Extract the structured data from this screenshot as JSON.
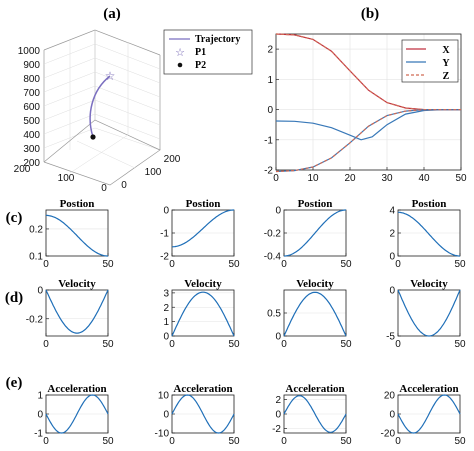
{
  "panel_labels": {
    "a": "(a)",
    "b": "(b)",
    "c": "(c)",
    "d": "(d)",
    "e": "(e)"
  },
  "chart_data": [
    {
      "id": "a",
      "type": "line",
      "subtype": "3d-line",
      "axes": {
        "z_ticks": [
          "1000",
          "900",
          "800",
          "700",
          "600",
          "500",
          "400",
          "300",
          "200"
        ],
        "x_ticks": [
          "200",
          "100",
          "0"
        ],
        "y_ticks": [
          "0",
          "100",
          "200"
        ]
      },
      "legend": {
        "placement": "top-right",
        "entries": [
          "Trajectory",
          "P1",
          "P2"
        ]
      },
      "points": {
        "P1": {
          "marker": "star",
          "color": "#6f5fb0"
        },
        "P2": {
          "marker": "dot",
          "color": "#111111"
        }
      },
      "series": [
        {
          "name": "Trajectory",
          "color": "#7b6fc0"
        }
      ]
    },
    {
      "id": "b",
      "type": "line",
      "xlim": [
        0,
        50
      ],
      "ylim": [
        -2,
        2.5
      ],
      "xticks": [
        0,
        10,
        20,
        30,
        40,
        50
      ],
      "yticks": [
        -2,
        -1,
        0,
        1,
        2
      ],
      "grid": true,
      "legend": {
        "placement": "top-right",
        "entries": [
          "X",
          "Y",
          "Z"
        ]
      },
      "series": [
        {
          "name": "X",
          "color": "#c03040",
          "style": "solid",
          "x": [
            0,
            5,
            10,
            15,
            20,
            25,
            30,
            35,
            40,
            45,
            50
          ],
          "y": [
            2.5,
            2.47,
            2.32,
            1.93,
            1.28,
            0.64,
            0.23,
            0.05,
            0.0,
            0.0,
            0.0
          ]
        },
        {
          "name": "Y",
          "color": "#3878b8",
          "style": "solid",
          "x": [
            0,
            5,
            10,
            15,
            20,
            23,
            26,
            30,
            35,
            40,
            45,
            50
          ],
          "y": [
            -0.38,
            -0.39,
            -0.45,
            -0.6,
            -0.85,
            -1.0,
            -0.9,
            -0.5,
            -0.15,
            -0.03,
            0.0,
            0.0
          ]
        },
        {
          "name": "Z",
          "color": "#d06a55",
          "style": "dashed",
          "x": [
            0,
            5,
            10,
            15,
            20,
            25,
            30,
            35,
            40,
            45,
            50
          ],
          "y": [
            2.5,
            2.47,
            2.32,
            1.93,
            1.28,
            0.64,
            0.23,
            0.05,
            0.0,
            0.0,
            0.0
          ]
        },
        {
          "name": "",
          "color": "#3878b8",
          "style": "solid",
          "x": [
            0,
            5,
            10,
            15,
            20,
            25,
            30,
            35,
            40,
            45,
            50
          ],
          "y": [
            -2.05,
            -2.02,
            -1.9,
            -1.6,
            -1.1,
            -0.55,
            -0.2,
            -0.05,
            0.0,
            0.0,
            0.0
          ]
        },
        {
          "name": "",
          "color": "#d06a55",
          "style": "dashed",
          "x": [
            0,
            5,
            10,
            15,
            20,
            25,
            30,
            35,
            40,
            45,
            50
          ],
          "y": [
            -2.05,
            -2.02,
            -1.9,
            -1.6,
            -1.1,
            -0.55,
            -0.2,
            -0.05,
            0.0,
            0.0,
            0.0
          ]
        }
      ]
    },
    {
      "id": "c1",
      "type": "line",
      "title": "Postion",
      "xlim": [
        0,
        50
      ],
      "ylim": [
        0.1,
        0.27
      ],
      "xticks": [
        0,
        50
      ],
      "yticks": [
        0.1,
        0.2
      ],
      "grid": true,
      "series": [
        {
          "color": "#1f6fb8",
          "shape": "cos_down",
          "from": 0.25,
          "to": 0.1
        }
      ]
    },
    {
      "id": "c2",
      "type": "line",
      "title": "Postion",
      "xlim": [
        0,
        50
      ],
      "ylim": [
        -2,
        0
      ],
      "xticks": [
        0,
        50
      ],
      "yticks": [
        -2,
        -1,
        0
      ],
      "grid": true,
      "series": [
        {
          "color": "#1f6fb8",
          "shape": "cos_up",
          "from": -1.6,
          "to": 0
        }
      ]
    },
    {
      "id": "c3",
      "type": "line",
      "title": "Postion",
      "xlim": [
        0,
        50
      ],
      "ylim": [
        -0.4,
        0
      ],
      "xticks": [
        0,
        50
      ],
      "yticks": [
        -0.4,
        -0.2,
        0
      ],
      "grid": true,
      "series": [
        {
          "color": "#1f6fb8",
          "shape": "cos_up",
          "from": -0.4,
          "to": 0
        }
      ]
    },
    {
      "id": "c4",
      "type": "line",
      "title": "Postion",
      "xlim": [
        0,
        50
      ],
      "ylim": [
        0,
        4
      ],
      "xticks": [
        0,
        50
      ],
      "yticks": [
        0,
        2,
        4
      ],
      "grid": true,
      "series": [
        {
          "color": "#1f6fb8",
          "shape": "cos_down",
          "from": 3.8,
          "to": 0
        }
      ]
    },
    {
      "id": "d1",
      "type": "line",
      "title": "Velocity",
      "xlim": [
        0,
        50
      ],
      "ylim": [
        -0.32,
        0
      ],
      "xticks": [
        0,
        50
      ],
      "yticks": [
        -0.2,
        0
      ],
      "grid": true,
      "series": [
        {
          "color": "#1f6fb8",
          "shape": "sin_half",
          "amp": -0.3
        }
      ]
    },
    {
      "id": "d2",
      "type": "line",
      "title": "Velocity",
      "xlim": [
        0,
        50
      ],
      "ylim": [
        0,
        3.2
      ],
      "xticks": [
        0,
        50
      ],
      "yticks": [
        0,
        1,
        2,
        3
      ],
      "grid": true,
      "series": [
        {
          "color": "#1f6fb8",
          "shape": "sin_half",
          "amp": 3.05
        }
      ]
    },
    {
      "id": "d3",
      "type": "line",
      "title": "Velocity",
      "xlim": [
        0,
        50
      ],
      "ylim": [
        0,
        1
      ],
      "xticks": [
        0,
        50
      ],
      "yticks": [
        0,
        0.5
      ],
      "grid": true,
      "series": [
        {
          "color": "#1f6fb8",
          "shape": "sin_half",
          "amp": 0.95
        }
      ]
    },
    {
      "id": "d4",
      "type": "line",
      "title": "Velocity",
      "xlim": [
        0,
        50
      ],
      "ylim": [
        -5,
        0
      ],
      "xticks": [
        0,
        50
      ],
      "yticks": [
        -5,
        0
      ],
      "grid": true,
      "series": [
        {
          "color": "#1f6fb8",
          "shape": "sin_half",
          "amp": -5
        }
      ]
    },
    {
      "id": "e1",
      "type": "line",
      "title": "Acceleration",
      "xlim": [
        0,
        50
      ],
      "ylim": [
        -1,
        1
      ],
      "xticks": [
        0,
        50
      ],
      "yticks": [
        -1,
        0,
        1
      ],
      "grid": true,
      "series": [
        {
          "color": "#1f6fb8",
          "shape": "sin_full",
          "amp": -1
        }
      ]
    },
    {
      "id": "e2",
      "type": "line",
      "title": "Acceleration",
      "xlim": [
        0,
        50
      ],
      "ylim": [
        -10,
        10
      ],
      "xticks": [
        0,
        50
      ],
      "yticks": [
        -10,
        0,
        10
      ],
      "grid": true,
      "series": [
        {
          "color": "#1f6fb8",
          "shape": "sin_full",
          "amp": 10
        }
      ]
    },
    {
      "id": "e3",
      "type": "line",
      "title": "Acceleration",
      "xlim": [
        0,
        50
      ],
      "ylim": [
        -2.6,
        2.6
      ],
      "xticks": [
        0,
        50
      ],
      "yticks": [
        -2,
        0,
        2
      ],
      "grid": true,
      "series": [
        {
          "color": "#1f6fb8",
          "shape": "sin_full",
          "amp": 2.5
        }
      ]
    },
    {
      "id": "e4",
      "type": "line",
      "title": "Acceleration",
      "xlim": [
        0,
        50
      ],
      "ylim": [
        -20,
        20
      ],
      "xticks": [
        0,
        50
      ],
      "yticks": [
        -20,
        0,
        20
      ],
      "grid": true,
      "series": [
        {
          "color": "#1f6fb8",
          "shape": "sin_full",
          "amp": -20
        }
      ]
    }
  ]
}
